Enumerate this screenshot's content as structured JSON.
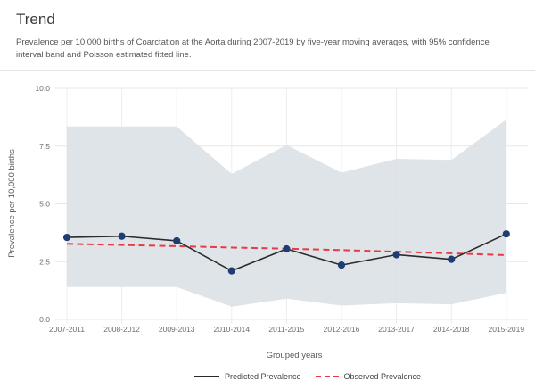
{
  "header": {
    "title": "Trend",
    "subtitle_lines": [
      "Prevalence per 10,000 births of Coarctation at the Aorta during 2007-2019 by five-year moving averages, with 95% confidence",
      "interval band and Poisson estimated fitted line."
    ]
  },
  "chart_data": {
    "type": "line",
    "xlabel": "Grouped years",
    "ylabel": "Prevalence per 10,000 births",
    "categories": [
      "2007-2011",
      "2008-2012",
      "2009-2013",
      "2010-2014",
      "2011-2015",
      "2012-2016",
      "2013-2017",
      "2014-2018",
      "2015-2019"
    ],
    "yticks": [
      0,
      2.5,
      5,
      7.5,
      10
    ],
    "ytick_labels": [
      "0.0",
      "2.5",
      "5.0",
      "7.5",
      "10.0"
    ],
    "ylim": [
      0,
      10
    ],
    "grid": true,
    "legend_position": "bottom",
    "series": [
      {
        "name": "Predicted Prevalence",
        "style": "solid-line-with-markers",
        "line_color": "#2b2b2b",
        "marker_color": "#1e3d72",
        "values": [
          3.55,
          3.6,
          3.4,
          2.1,
          3.05,
          2.35,
          2.8,
          2.6,
          3.7
        ]
      },
      {
        "name": "Observed Prevalence",
        "style": "dashed-line",
        "line_color": "#e83a44",
        "values": [
          3.27,
          3.22,
          3.17,
          3.11,
          3.06,
          3.0,
          2.93,
          2.86,
          2.78
        ]
      }
    ],
    "band": {
      "name": "95% confidence interval",
      "fill_color": "#dbe1e7",
      "upper": [
        8.35,
        8.35,
        8.35,
        6.3,
        7.55,
        6.35,
        6.95,
        6.9,
        8.65
      ],
      "lower": [
        1.4,
        1.4,
        1.4,
        0.55,
        0.9,
        0.6,
        0.7,
        0.65,
        1.15
      ]
    },
    "colors": {
      "grid_h": "#e7e7e7",
      "grid_v": "#ececec",
      "tick_text": "#6e6e6e",
      "axis_title_text": "#5a5a5a"
    }
  }
}
